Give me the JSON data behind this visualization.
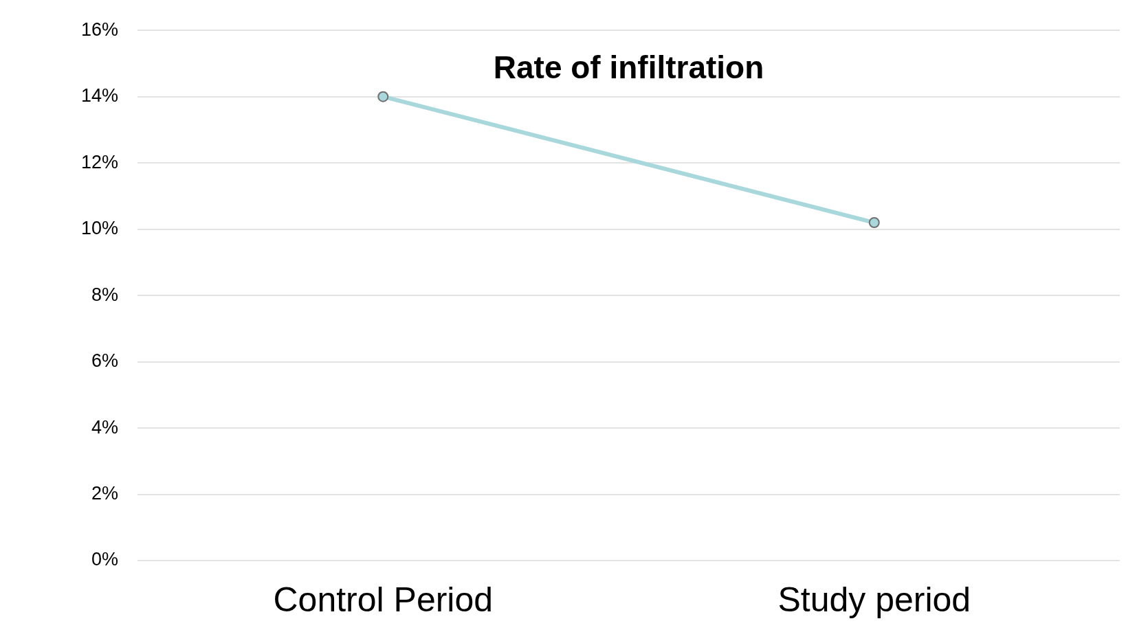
{
  "chart_data": {
    "type": "line",
    "title": "Rate of infiltration",
    "categories": [
      "Control Period",
      "Study period"
    ],
    "series": [
      {
        "color": "#a8d8dc",
        "values": [
          14,
          10.2
        ]
      }
    ],
    "ylim": [
      0,
      16
    ],
    "yticks": [
      {
        "value": 0,
        "label": "0%"
      },
      {
        "value": 2,
        "label": "2%"
      },
      {
        "value": 4,
        "label": "4%"
      },
      {
        "value": 6,
        "label": "6%"
      },
      {
        "value": 8,
        "label": "8%"
      },
      {
        "value": 10,
        "label": "10%"
      },
      {
        "value": 12,
        "label": "12%"
      },
      {
        "value": 14,
        "label": "14%"
      },
      {
        "value": 16,
        "label": "16%"
      }
    ],
    "grid": "y",
    "legend": false,
    "marker": "circle",
    "line_style": "solid"
  }
}
